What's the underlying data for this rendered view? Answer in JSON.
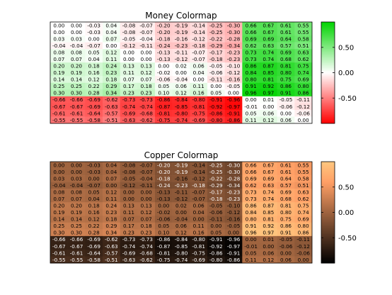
{
  "chart_data": [
    {
      "type": "heatmap",
      "title": "Money Colormap",
      "colormap": "money",
      "clim": [
        -1,
        1
      ],
      "colorbar_ticks": [
        -0.5,
        0,
        0.5
      ],
      "colorbar_tick_labels": [
        "-0.50",
        "0.00",
        "0.50"
      ],
      "values": [
        [
          0.0,
          -0.0,
          -0.03,
          0.04,
          -0.08,
          -0.07,
          -0.2,
          -0.19,
          -0.14,
          -0.25,
          -0.3,
          0.66,
          0.67,
          0.61,
          0.55
        ],
        [
          0.0,
          0.0,
          -0.03,
          0.04,
          -0.08,
          -0.07,
          -0.2,
          -0.19,
          -0.14,
          -0.25,
          -0.3,
          0.66,
          0.67,
          0.61,
          0.55
        ],
        [
          0.03,
          0.03,
          0.0,
          0.07,
          -0.05,
          -0.04,
          -0.18,
          -0.16,
          -0.12,
          -0.22,
          -0.28,
          0.69,
          0.69,
          0.64,
          0.58
        ],
        [
          -0.04,
          -0.04,
          -0.07,
          0.0,
          -0.12,
          -0.11,
          -0.24,
          -0.23,
          -0.18,
          -0.29,
          -0.34,
          0.62,
          0.63,
          0.57,
          0.51
        ],
        [
          0.08,
          0.08,
          0.05,
          0.12,
          0.0,
          0.0,
          -0.13,
          -0.11,
          -0.07,
          -0.17,
          -0.23,
          0.73,
          0.74,
          0.69,
          0.63
        ],
        [
          0.07,
          0.07,
          0.04,
          0.11,
          -0.0,
          0.0,
          -0.13,
          -0.12,
          -0.07,
          -0.18,
          -0.23,
          0.73,
          0.74,
          0.68,
          0.62
        ],
        [
          0.2,
          0.2,
          0.18,
          0.24,
          0.13,
          0.13,
          0.0,
          0.02,
          0.06,
          -0.05,
          -0.1,
          0.86,
          0.87,
          0.81,
          0.75
        ],
        [
          0.19,
          0.19,
          0.16,
          0.23,
          0.11,
          0.12,
          -0.02,
          0.0,
          0.04,
          -0.06,
          -0.12,
          0.84,
          0.85,
          0.8,
          0.74
        ],
        [
          0.14,
          0.14,
          0.12,
          0.18,
          0.07,
          0.07,
          -0.06,
          -0.04,
          0.0,
          -0.11,
          -0.16,
          0.8,
          0.81,
          0.75,
          0.69
        ],
        [
          0.25,
          0.25,
          0.22,
          0.29,
          0.17,
          0.18,
          0.05,
          0.06,
          0.11,
          0.0,
          -0.05,
          0.91,
          0.92,
          0.86,
          0.8
        ],
        [
          0.3,
          0.3,
          0.28,
          0.34,
          0.23,
          0.23,
          0.1,
          0.12,
          0.16,
          0.05,
          0.0,
          0.96,
          0.97,
          0.91,
          0.86
        ],
        [
          -0.66,
          -0.66,
          -0.69,
          -0.62,
          -0.73,
          -0.73,
          -0.86,
          -0.84,
          -0.8,
          -0.91,
          -0.96,
          0.0,
          0.01,
          -0.05,
          -0.11
        ],
        [
          -0.67,
          -0.67,
          -0.69,
          -0.63,
          -0.74,
          -0.74,
          -0.87,
          -0.85,
          -0.81,
          -0.92,
          -0.97,
          -0.01,
          0.0,
          -0.06,
          -0.12
        ],
        [
          -0.61,
          -0.61,
          -0.64,
          -0.57,
          -0.69,
          -0.68,
          -0.81,
          -0.8,
          -0.75,
          -0.86,
          -0.91,
          0.05,
          0.06,
          0.0,
          -0.06
        ],
        [
          -0.55,
          -0.55,
          -0.58,
          -0.51,
          -0.63,
          -0.62,
          -0.75,
          -0.74,
          -0.69,
          -0.8,
          -0.86,
          0.11,
          0.12,
          0.06,
          0.0
        ]
      ]
    },
    {
      "type": "heatmap",
      "title": "Copper Colormap",
      "colormap": "copper",
      "clim": [
        -1,
        1
      ],
      "colorbar_ticks": [
        -0.5,
        0,
        0.5
      ],
      "colorbar_tick_labels": [
        "-0.50",
        "0.00",
        "0.50"
      ],
      "values": [
        [
          0.0,
          -0.0,
          -0.03,
          0.04,
          -0.08,
          -0.07,
          -0.2,
          -0.19,
          -0.14,
          -0.25,
          -0.3,
          0.66,
          0.67,
          0.61,
          0.55
        ],
        [
          0.0,
          0.0,
          -0.03,
          0.04,
          -0.08,
          -0.07,
          -0.2,
          -0.19,
          -0.14,
          -0.25,
          -0.3,
          0.66,
          0.67,
          0.61,
          0.55
        ],
        [
          0.03,
          0.03,
          0.0,
          0.07,
          -0.05,
          -0.04,
          -0.18,
          -0.16,
          -0.12,
          -0.22,
          -0.28,
          0.69,
          0.69,
          0.64,
          0.58
        ],
        [
          -0.04,
          -0.04,
          -0.07,
          0.0,
          -0.12,
          -0.11,
          -0.24,
          -0.23,
          -0.18,
          -0.29,
          -0.34,
          0.62,
          0.63,
          0.57,
          0.51
        ],
        [
          0.08,
          0.08,
          0.05,
          0.12,
          0.0,
          0.0,
          -0.13,
          -0.11,
          -0.07,
          -0.17,
          -0.23,
          0.73,
          0.74,
          0.69,
          0.63
        ],
        [
          0.07,
          0.07,
          0.04,
          0.11,
          -0.0,
          0.0,
          -0.13,
          -0.12,
          -0.07,
          -0.18,
          -0.23,
          0.73,
          0.74,
          0.68,
          0.62
        ],
        [
          0.2,
          0.2,
          0.18,
          0.24,
          0.13,
          0.13,
          0.0,
          0.02,
          0.06,
          -0.05,
          -0.1,
          0.86,
          0.87,
          0.81,
          0.75
        ],
        [
          0.19,
          0.19,
          0.16,
          0.23,
          0.11,
          0.12,
          -0.02,
          0.0,
          0.04,
          -0.06,
          -0.12,
          0.84,
          0.85,
          0.8,
          0.74
        ],
        [
          0.14,
          0.14,
          0.12,
          0.18,
          0.07,
          0.07,
          -0.06,
          -0.04,
          0.0,
          -0.11,
          -0.16,
          0.8,
          0.81,
          0.75,
          0.69
        ],
        [
          0.25,
          0.25,
          0.22,
          0.29,
          0.17,
          0.18,
          0.05,
          0.06,
          0.11,
          0.0,
          -0.05,
          0.91,
          0.92,
          0.86,
          0.8
        ],
        [
          0.3,
          0.3,
          0.28,
          0.34,
          0.23,
          0.23,
          0.1,
          0.12,
          0.16,
          0.05,
          0.0,
          0.96,
          0.97,
          0.91,
          0.86
        ],
        [
          -0.66,
          -0.66,
          -0.69,
          -0.62,
          -0.73,
          -0.73,
          -0.86,
          -0.84,
          -0.8,
          -0.91,
          -0.96,
          0.0,
          0.01,
          -0.05,
          -0.11
        ],
        [
          -0.67,
          -0.67,
          -0.69,
          -0.63,
          -0.74,
          -0.74,
          -0.87,
          -0.85,
          -0.81,
          -0.92,
          -0.97,
          -0.01,
          0.0,
          -0.06,
          -0.12
        ],
        [
          -0.61,
          -0.61,
          -0.64,
          -0.57,
          -0.69,
          -0.68,
          -0.81,
          -0.8,
          -0.75,
          -0.86,
          -0.91,
          0.05,
          0.06,
          0.0,
          -0.06
        ],
        [
          -0.55,
          -0.55,
          -0.58,
          -0.51,
          -0.63,
          -0.62,
          -0.75,
          -0.74,
          -0.69,
          -0.8,
          -0.86,
          0.11,
          0.12,
          0.06,
          0.0
        ]
      ]
    }
  ]
}
